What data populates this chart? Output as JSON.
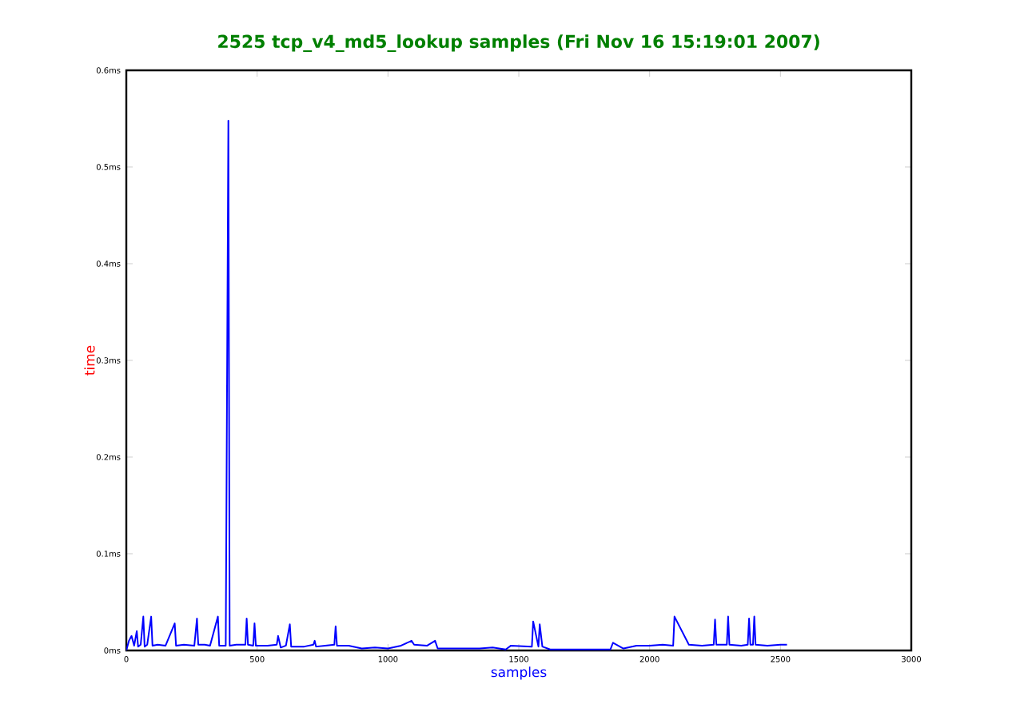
{
  "chart_data": {
    "type": "line",
    "title": "2525 tcp_v4_md5_lookup samples (Fri Nov 16 15:19:01 2007)",
    "xlabel": "samples",
    "ylabel": "time",
    "x": [
      0,
      10,
      20,
      30,
      40,
      45,
      55,
      65,
      70,
      80,
      95,
      100,
      120,
      150,
      185,
      190,
      220,
      260,
      270,
      275,
      300,
      320,
      350,
      355,
      380,
      390,
      395,
      420,
      455,
      460,
      465,
      485,
      490,
      495,
      540,
      575,
      580,
      590,
      610,
      625,
      630,
      680,
      715,
      720,
      725,
      760,
      795,
      800,
      805,
      850,
      900,
      950,
      1000,
      1050,
      1090,
      1100,
      1150,
      1180,
      1190,
      1250,
      1350,
      1400,
      1450,
      1470,
      1550,
      1555,
      1575,
      1580,
      1590,
      1620,
      1700,
      1800,
      1850,
      1860,
      1900,
      1950,
      2000,
      2050,
      2090,
      2095,
      2150,
      2200,
      2245,
      2250,
      2255,
      2295,
      2300,
      2305,
      2350,
      2375,
      2380,
      2385,
      2395,
      2400,
      2405,
      2450,
      2500,
      2525
    ],
    "series": [
      {
        "color": "#0000ff",
        "values": [
          0.0,
          0.01,
          0.015,
          0.005,
          0.02,
          0.004,
          0.006,
          0.035,
          0.004,
          0.006,
          0.035,
          0.005,
          0.006,
          0.005,
          0.028,
          0.005,
          0.006,
          0.005,
          0.033,
          0.006,
          0.006,
          0.005,
          0.035,
          0.005,
          0.005,
          0.548,
          0.005,
          0.006,
          0.006,
          0.033,
          0.006,
          0.005,
          0.028,
          0.005,
          0.005,
          0.006,
          0.015,
          0.003,
          0.005,
          0.027,
          0.004,
          0.004,
          0.006,
          0.01,
          0.004,
          0.005,
          0.006,
          0.025,
          0.005,
          0.005,
          0.002,
          0.003,
          0.002,
          0.005,
          0.01,
          0.006,
          0.005,
          0.01,
          0.002,
          0.002,
          0.002,
          0.003,
          0.001,
          0.005,
          0.004,
          0.03,
          0.004,
          0.027,
          0.004,
          0.001,
          0.001,
          0.001,
          0.001,
          0.008,
          0.002,
          0.005,
          0.005,
          0.006,
          0.005,
          0.035,
          0.006,
          0.005,
          0.006,
          0.032,
          0.006,
          0.006,
          0.035,
          0.006,
          0.005,
          0.006,
          0.033,
          0.006,
          0.006,
          0.035,
          0.006,
          0.005,
          0.006,
          0.006
        ]
      }
    ],
    "xlim": [
      0,
      3000
    ],
    "ylim": [
      0,
      0.6
    ],
    "xticks": [
      0,
      500,
      1000,
      1500,
      2000,
      2500,
      3000
    ],
    "yticks": [
      {
        "value": 0,
        "label": "0ms"
      },
      {
        "value": 0.1,
        "label": "0.1ms"
      },
      {
        "value": 0.2,
        "label": "0.2ms"
      },
      {
        "value": 0.3,
        "label": "0.3ms"
      },
      {
        "value": 0.4,
        "label": "0.4ms"
      },
      {
        "value": 0.5,
        "label": "0.5ms"
      },
      {
        "value": 0.6,
        "label": "0.6ms"
      }
    ],
    "grid": false,
    "marker": "none",
    "line_style": "solid"
  }
}
